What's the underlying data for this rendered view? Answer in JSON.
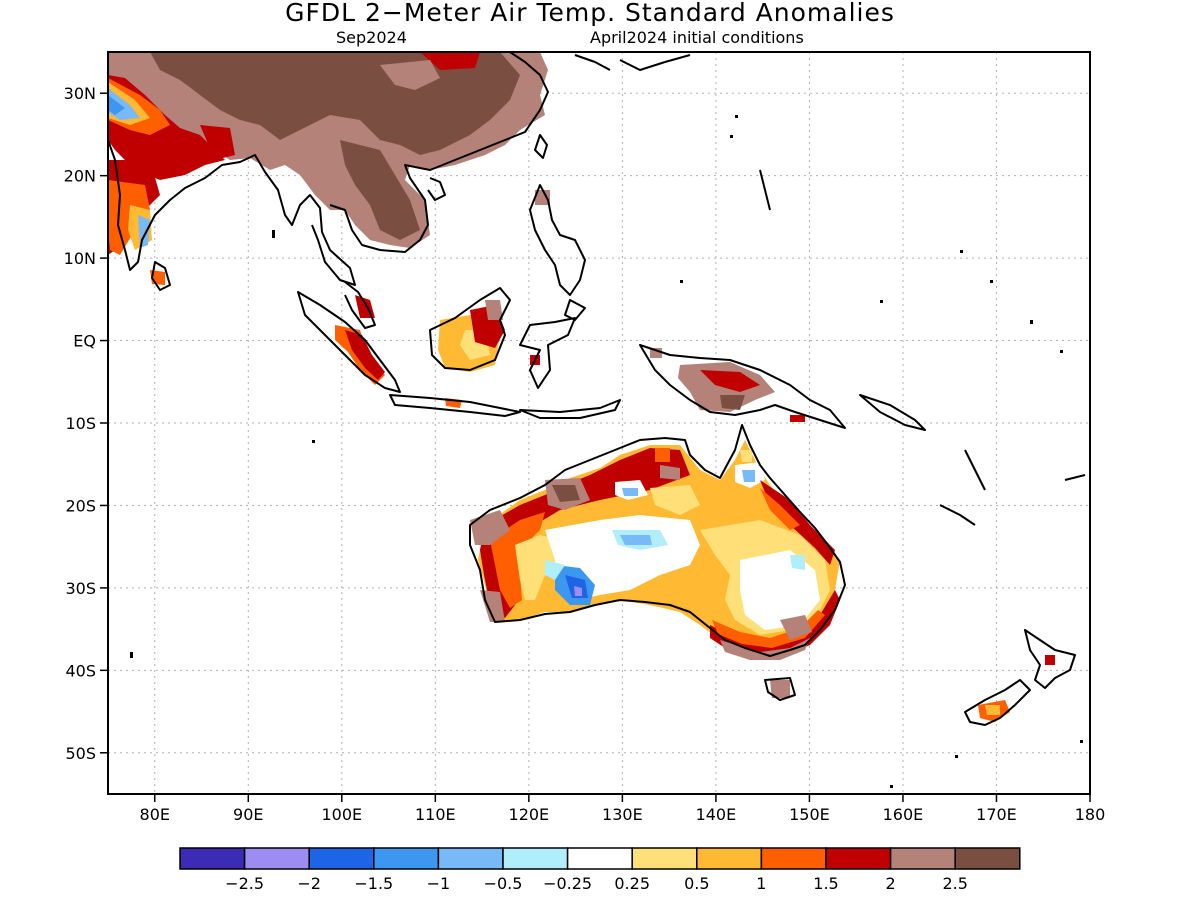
{
  "header": {
    "title": "GFDL 2−Meter Air Temp. Standard Anomalies",
    "subtitle_left": "Sep2024",
    "subtitle_right": "April2024 initial conditions"
  },
  "map": {
    "lon_range": [
      75,
      180
    ],
    "lat_range": [
      -55,
      35
    ],
    "lat_ticks": [
      "30N",
      "20N",
      "10N",
      "EQ",
      "10S",
      "20S",
      "30S",
      "40S",
      "50S"
    ],
    "lon_ticks": [
      "80E",
      "90E",
      "100E",
      "110E",
      "120E",
      "130E",
      "140E",
      "150E",
      "160E",
      "170E",
      "180"
    ],
    "grid": "dotted"
  },
  "colorbar": {
    "colors": [
      "#3c2bb4",
      "#9d8cf2",
      "#1e64e6",
      "#3c97f0",
      "#78b9f8",
      "#b0eefc",
      "#ffffff",
      "#ffe078",
      "#ffb932",
      "#ff5f00",
      "#c00000",
      "#b48278",
      "#7a4f41"
    ],
    "labels": [
      "−2.5",
      "−2",
      "−1.5",
      "−1",
      "−0.5",
      "−0.25",
      "0.25",
      "0.5",
      "1",
      "1.5",
      "2",
      "2.5"
    ]
  }
}
